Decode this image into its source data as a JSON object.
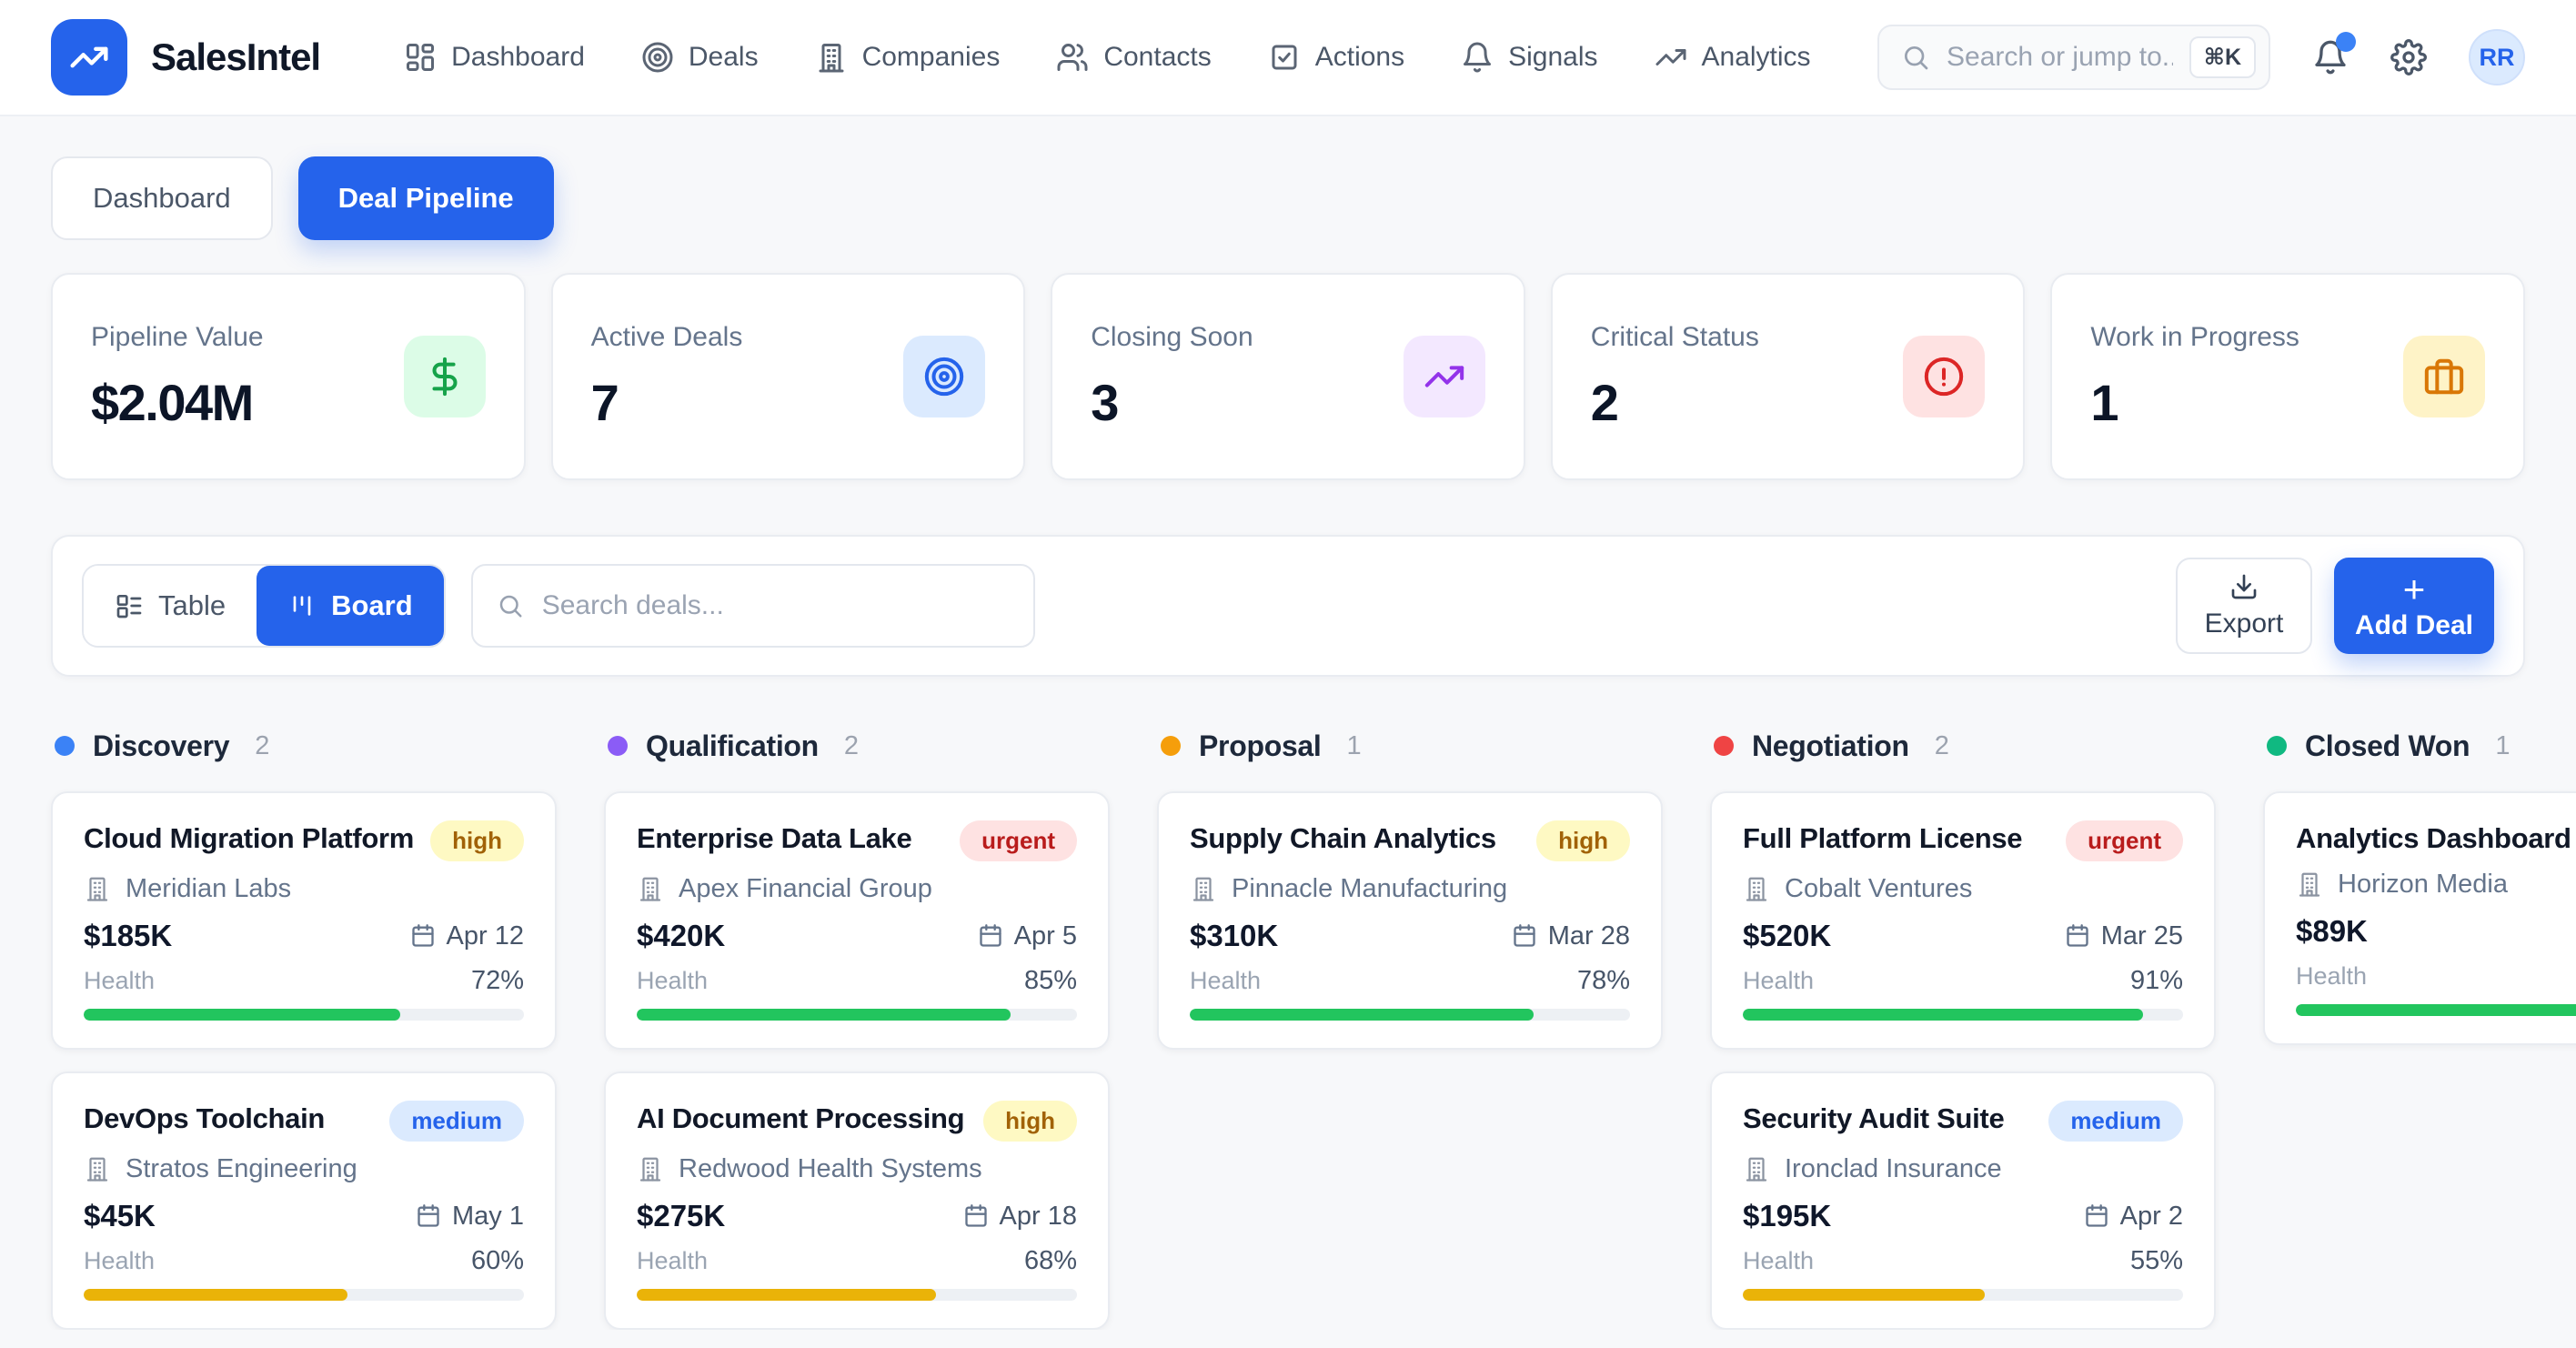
{
  "brand": {
    "name": "SalesIntel",
    "accent_color": "#2563eb"
  },
  "nav": [
    {
      "label": "Dashboard",
      "icon": "layout-dashboard-icon"
    },
    {
      "label": "Deals",
      "icon": "target-icon"
    },
    {
      "label": "Companies",
      "icon": "building-icon"
    },
    {
      "label": "Contacts",
      "icon": "users-icon"
    },
    {
      "label": "Actions",
      "icon": "check-square-icon"
    },
    {
      "label": "Signals",
      "icon": "bell-icon"
    },
    {
      "label": "Analytics",
      "icon": "trending-up-icon"
    }
  ],
  "header_search": {
    "placeholder": "Search or jump to...",
    "shortcut": "⌘K"
  },
  "user": {
    "initials": "RR"
  },
  "view_tabs": {
    "dashboard": "Dashboard",
    "pipeline": "Deal Pipeline"
  },
  "stats": [
    {
      "label": "Pipeline Value",
      "value": "$2.04M",
      "icon": "dollar-icon",
      "icon_bg": "#dcfce7",
      "icon_fg": "#16a34a"
    },
    {
      "label": "Active Deals",
      "value": "7",
      "icon": "target-icon",
      "icon_bg": "#dbeafe",
      "icon_fg": "#2563eb"
    },
    {
      "label": "Closing Soon",
      "value": "3",
      "icon": "trending-up-icon",
      "icon_bg": "#f3e8ff",
      "icon_fg": "#9333ea"
    },
    {
      "label": "Critical Status",
      "value": "2",
      "icon": "alert-circle-icon",
      "icon_bg": "#fee2e2",
      "icon_fg": "#dc2626"
    },
    {
      "label": "Work in Progress",
      "value": "1",
      "icon": "briefcase-icon",
      "icon_bg": "#fef3c7",
      "icon_fg": "#d97706"
    }
  ],
  "toolbar": {
    "table_label": "Table",
    "board_label": "Board",
    "search_placeholder": "Search deals...",
    "export_label": "Export",
    "add_plus": "+",
    "add_label": "Add Deal"
  },
  "board": {
    "health_label": "Health",
    "bar_green": "#22c55e",
    "bar_amber": "#eab308",
    "columns": [
      {
        "name": "Discovery",
        "count": "2",
        "dot": "#3b82f6",
        "cards": [
          {
            "title": "Cloud Migration Platform",
            "priority": "high",
            "priority_bg": "#fef9c3",
            "priority_fg": "#a16207",
            "company": "Meridian Labs",
            "value": "$185K",
            "date": "Apr 12",
            "health_pct": 72,
            "health_display": "72%",
            "bar": "#22c55e"
          },
          {
            "title": "DevOps Toolchain",
            "priority": "medium",
            "priority_bg": "#dbeafe",
            "priority_fg": "#2563eb",
            "company": "Stratos Engineering",
            "value": "$45K",
            "date": "May 1",
            "health_pct": 60,
            "health_display": "60%",
            "bar": "#eab308"
          }
        ]
      },
      {
        "name": "Qualification",
        "count": "2",
        "dot": "#8b5cf6",
        "cards": [
          {
            "title": "Enterprise Data Lake",
            "priority": "urgent",
            "priority_bg": "#fee2e2",
            "priority_fg": "#b91c1c",
            "company": "Apex Financial Group",
            "value": "$420K",
            "date": "Apr 5",
            "health_pct": 85,
            "health_display": "85%",
            "bar": "#22c55e"
          },
          {
            "title": "AI Document Processing",
            "priority": "high",
            "priority_bg": "#fef9c3",
            "priority_fg": "#a16207",
            "company": "Redwood Health Systems",
            "value": "$275K",
            "date": "Apr 18",
            "health_pct": 68,
            "health_display": "68%",
            "bar": "#eab308"
          }
        ]
      },
      {
        "name": "Proposal",
        "count": "1",
        "dot": "#f59e0b",
        "cards": [
          {
            "title": "Supply Chain Analytics",
            "priority": "high",
            "priority_bg": "#fef9c3",
            "priority_fg": "#a16207",
            "company": "Pinnacle Manufacturing",
            "value": "$310K",
            "date": "Mar 28",
            "health_pct": 78,
            "health_display": "78%",
            "bar": "#22c55e"
          }
        ]
      },
      {
        "name": "Negotiation",
        "count": "2",
        "dot": "#ef4444",
        "cards": [
          {
            "title": "Full Platform License",
            "priority": "urgent",
            "priority_bg": "#fee2e2",
            "priority_fg": "#b91c1c",
            "company": "Cobalt Ventures",
            "value": "$520K",
            "date": "Mar 25",
            "health_pct": 91,
            "health_display": "91%",
            "bar": "#22c55e"
          },
          {
            "title": "Security Audit Suite",
            "priority": "medium",
            "priority_bg": "#dbeafe",
            "priority_fg": "#2563eb",
            "company": "Ironclad Insurance",
            "value": "$195K",
            "date": "Apr 2",
            "health_pct": 55,
            "health_display": "55%",
            "bar": "#eab308"
          }
        ]
      },
      {
        "name": "Closed Won",
        "count": "1",
        "dot": "#10b981",
        "cards": [
          {
            "title": "Analytics Dashboard",
            "company": "Horizon Media",
            "value": "$89K",
            "health_pct": 100,
            "bar": "#22c55e"
          }
        ]
      }
    ]
  }
}
